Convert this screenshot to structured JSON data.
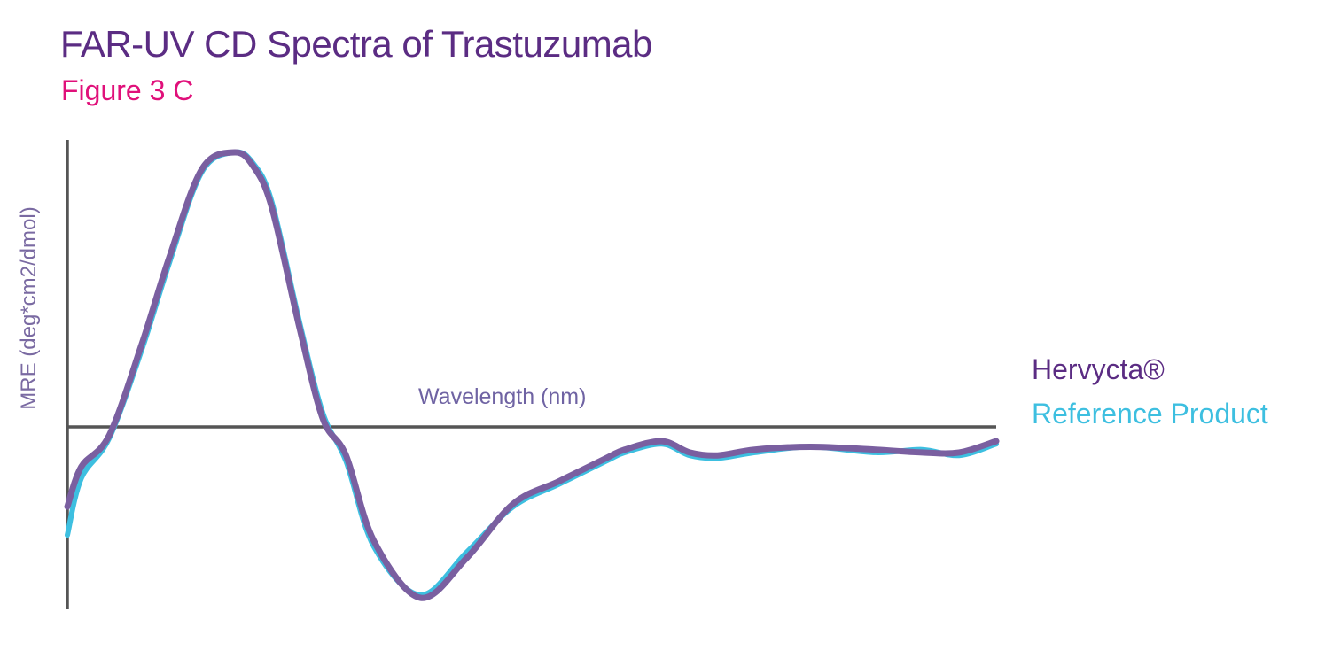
{
  "header": {
    "title": "FAR-UV CD Spectra of Trastuzumab",
    "subtitle": "Figure 3 C"
  },
  "chart_data": {
    "type": "line",
    "title": "FAR-UV CD Spectra of Trastuzumab",
    "subtitle": "Figure 3 C",
    "xlabel": "Wavelength (nm)",
    "ylabel": "MRE (deg*cm2/dmol)",
    "xlim": [
      0,
      100
    ],
    "ylim": [
      -1,
      1
    ],
    "grid": false,
    "legend_position": "right",
    "series": [
      {
        "name": "Reference Product",
        "color": "#3dbfe0",
        "x": [
          0,
          1.5,
          4.5,
          8,
          11,
          14.5,
          18,
          20,
          22,
          25,
          27.5,
          30,
          33,
          38,
          43,
          48,
          53,
          58,
          60,
          64,
          67,
          70,
          74,
          80,
          87,
          92,
          96,
          100
        ],
        "y": [
          -0.38,
          -0.18,
          -0.04,
          0.28,
          0.6,
          0.93,
          1.0,
          0.96,
          0.82,
          0.38,
          0.05,
          -0.12,
          -0.42,
          -0.59,
          -0.44,
          -0.28,
          -0.2,
          -0.12,
          -0.09,
          -0.06,
          -0.1,
          -0.11,
          -0.09,
          -0.07,
          -0.09,
          -0.08,
          -0.1,
          -0.06
        ]
      },
      {
        "name": "Hervycta®",
        "color": "#7a5fa0",
        "x": [
          0,
          1.5,
          4.5,
          8,
          11,
          14.5,
          18,
          20,
          22,
          25,
          27.5,
          30,
          33,
          38,
          43,
          48,
          53,
          58,
          60,
          64,
          67,
          70,
          74,
          80,
          87,
          92,
          96,
          100
        ],
        "y": [
          -0.28,
          -0.14,
          -0.03,
          0.3,
          0.62,
          0.94,
          1.0,
          0.95,
          0.8,
          0.36,
          0.03,
          -0.1,
          -0.4,
          -0.6,
          -0.46,
          -0.27,
          -0.19,
          -0.11,
          -0.08,
          -0.05,
          -0.09,
          -0.1,
          -0.08,
          -0.07,
          -0.08,
          -0.09,
          -0.09,
          -0.05
        ]
      }
    ]
  },
  "legend": {
    "items": [
      {
        "label": "Hervycta®",
        "color": "#5b2c83"
      },
      {
        "label": "Reference Product",
        "color": "#3dbfe0"
      }
    ]
  },
  "axis_color": "#555555"
}
